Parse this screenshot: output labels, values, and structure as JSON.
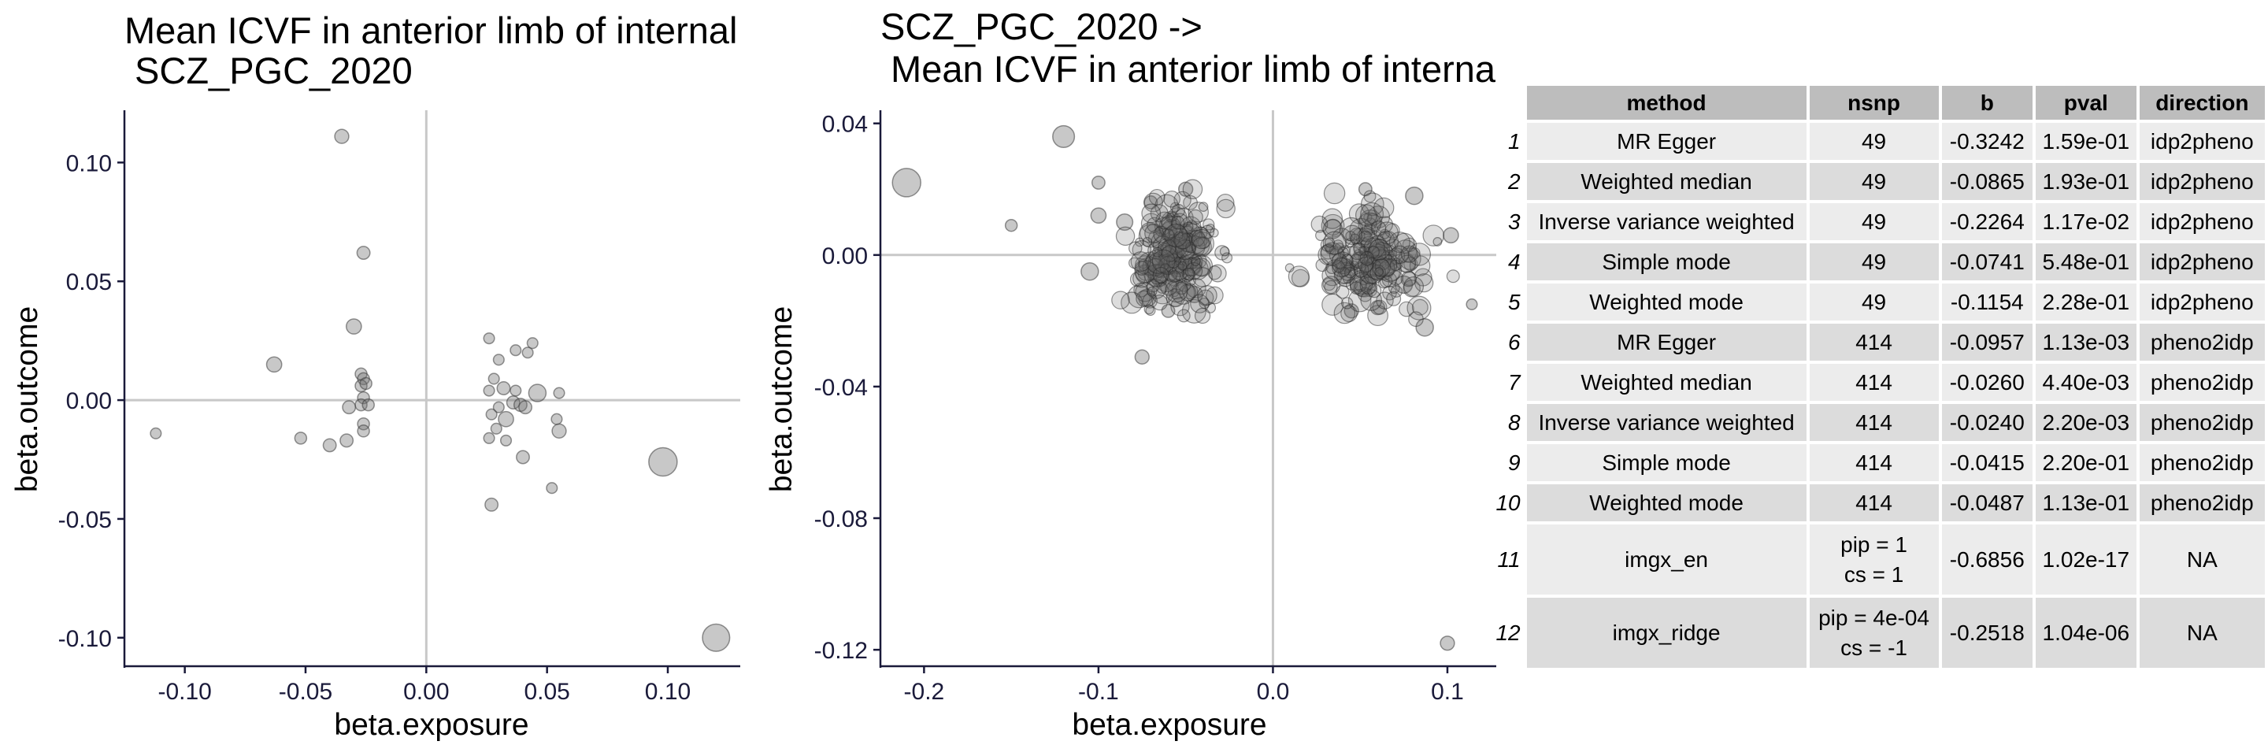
{
  "chart_data": [
    {
      "type": "scatter",
      "title_line1": "Mean ICVF in anterior limb of internal",
      "title_line2": " SCZ_PGC_2020",
      "xlabel": "beta.exposure",
      "ylabel": "beta.outcome",
      "xlim": [
        -0.125,
        0.13
      ],
      "ylim": [
        -0.112,
        0.122
      ],
      "xticks": [
        -0.1,
        -0.05,
        0.0,
        0.05,
        0.1
      ],
      "xtick_labels": [
        "-0.10",
        "-0.05",
        "0.00",
        "0.05",
        "0.10"
      ],
      "yticks": [
        -0.1,
        -0.05,
        0.0,
        0.05,
        0.1
      ],
      "ytick_labels": [
        "-0.10",
        "-0.05",
        "0.00",
        "0.05",
        "0.10"
      ],
      "points": [
        {
          "x": -0.035,
          "y": 0.111,
          "s": 0.35
        },
        {
          "x": -0.026,
          "y": 0.062,
          "s": 0.3
        },
        {
          "x": -0.063,
          "y": 0.015,
          "s": 0.4
        },
        {
          "x": -0.03,
          "y": 0.031,
          "s": 0.4
        },
        {
          "x": -0.112,
          "y": -0.014,
          "s": 0.2
        },
        {
          "x": -0.052,
          "y": -0.016,
          "s": 0.25
        },
        {
          "x": -0.04,
          "y": -0.019,
          "s": 0.3
        },
        {
          "x": -0.033,
          "y": -0.017,
          "s": 0.3
        },
        {
          "x": -0.027,
          "y": 0.011,
          "s": 0.25
        },
        {
          "x": -0.026,
          "y": 0.009,
          "s": 0.25
        },
        {
          "x": -0.027,
          "y": 0.006,
          "s": 0.25
        },
        {
          "x": -0.025,
          "y": 0.007,
          "s": 0.25
        },
        {
          "x": -0.026,
          "y": 0.001,
          "s": 0.25
        },
        {
          "x": -0.027,
          "y": -0.002,
          "s": 0.25
        },
        {
          "x": -0.024,
          "y": -0.002,
          "s": 0.25
        },
        {
          "x": -0.032,
          "y": -0.003,
          "s": 0.3
        },
        {
          "x": -0.026,
          "y": -0.01,
          "s": 0.25
        },
        {
          "x": -0.026,
          "y": -0.013,
          "s": 0.25
        },
        {
          "x": 0.026,
          "y": 0.026,
          "s": 0.2
        },
        {
          "x": 0.044,
          "y": 0.024,
          "s": 0.2
        },
        {
          "x": 0.042,
          "y": 0.02,
          "s": 0.2
        },
        {
          "x": 0.037,
          "y": 0.021,
          "s": 0.2
        },
        {
          "x": 0.03,
          "y": 0.017,
          "s": 0.2
        },
        {
          "x": 0.028,
          "y": 0.009,
          "s": 0.2
        },
        {
          "x": 0.026,
          "y": 0.004,
          "s": 0.2
        },
        {
          "x": 0.032,
          "y": 0.005,
          "s": 0.3
        },
        {
          "x": 0.037,
          "y": 0.004,
          "s": 0.2
        },
        {
          "x": 0.046,
          "y": 0.003,
          "s": 0.5
        },
        {
          "x": 0.055,
          "y": 0.003,
          "s": 0.2
        },
        {
          "x": 0.036,
          "y": -0.001,
          "s": 0.3
        },
        {
          "x": 0.039,
          "y": -0.002,
          "s": 0.3
        },
        {
          "x": 0.041,
          "y": -0.003,
          "s": 0.3
        },
        {
          "x": 0.03,
          "y": -0.003,
          "s": 0.2
        },
        {
          "x": 0.027,
          "y": -0.006,
          "s": 0.2
        },
        {
          "x": 0.033,
          "y": -0.008,
          "s": 0.4
        },
        {
          "x": 0.029,
          "y": -0.012,
          "s": 0.2
        },
        {
          "x": 0.054,
          "y": -0.008,
          "s": 0.2
        },
        {
          "x": 0.055,
          "y": -0.013,
          "s": 0.35
        },
        {
          "x": 0.026,
          "y": -0.016,
          "s": 0.2
        },
        {
          "x": 0.033,
          "y": -0.017,
          "s": 0.2
        },
        {
          "x": 0.04,
          "y": -0.024,
          "s": 0.3
        },
        {
          "x": 0.052,
          "y": -0.037,
          "s": 0.2
        },
        {
          "x": 0.027,
          "y": -0.044,
          "s": 0.3
        },
        {
          "x": 0.098,
          "y": -0.026,
          "s": 1.0
        },
        {
          "x": 0.12,
          "y": -0.1,
          "s": 0.95
        }
      ]
    },
    {
      "type": "scatter",
      "title_line1": "SCZ_PGC_2020 ->",
      "title_line2": " Mean ICVF in anterior limb of internal capsule on FA skeleton (left)",
      "xlabel": "beta.exposure",
      "ylabel": "beta.outcome",
      "xlim": [
        -0.225,
        0.128
      ],
      "ylim": [
        -0.125,
        0.044
      ],
      "xticks": [
        -0.2,
        -0.1,
        0.0,
        0.1
      ],
      "xtick_labels": [
        "-0.2",
        "-0.1",
        "0.0",
        "0.1"
      ],
      "yticks": [
        -0.12,
        -0.08,
        -0.04,
        0.0,
        0.04
      ],
      "ytick_labels": [
        "-0.12",
        "-0.08",
        "-0.04",
        "0.00",
        "0.04"
      ],
      "points": [
        {
          "x": -0.21,
          "y": 0.022,
          "s": 1.0
        },
        {
          "x": -0.12,
          "y": 0.036,
          "s": 0.7
        },
        {
          "x": -0.15,
          "y": 0.009,
          "s": 0.25
        },
        {
          "x": -0.1,
          "y": 0.022,
          "s": 0.3
        },
        {
          "x": -0.075,
          "y": -0.031,
          "s": 0.35
        },
        {
          "x": -0.1,
          "y": 0.012,
          "s": 0.4
        },
        {
          "x": -0.105,
          "y": -0.005,
          "s": 0.5
        },
        {
          "x": -0.072,
          "y": -0.013,
          "s": 0.5
        },
        {
          "x": -0.05,
          "y": 0.02,
          "s": 0.35
        },
        {
          "x": -0.07,
          "y": 0.016,
          "s": 0.3
        },
        {
          "x": -0.085,
          "y": 0.01,
          "s": 0.45
        },
        {
          "x": -0.06,
          "y": -0.017,
          "s": 0.3
        },
        {
          "x": -0.045,
          "y": -0.012,
          "s": 0.45
        },
        {
          "x": 0.1,
          "y": -0.118,
          "s": 0.35
        },
        {
          "x": 0.114,
          "y": -0.015,
          "s": 0.2
        },
        {
          "x": 0.102,
          "y": 0.006,
          "s": 0.4
        },
        {
          "x": 0.081,
          "y": 0.018,
          "s": 0.5
        },
        {
          "x": 0.087,
          "y": -0.022,
          "s": 0.5
        },
        {
          "x": 0.053,
          "y": 0.02,
          "s": 0.3
        },
        {
          "x": 0.075,
          "y": -0.009,
          "s": 0.5
        },
        {
          "x": 0.06,
          "y": -0.016,
          "s": 0.35
        },
        {
          "x": 0.045,
          "y": -0.017,
          "s": 0.35
        }
      ],
      "clusters": [
        {
          "cx": -0.055,
          "cy": 0.0,
          "sx": 0.012,
          "sy": 0.008,
          "n": 220,
          "seed": 11
        },
        {
          "cx": 0.055,
          "cy": -0.002,
          "sx": 0.015,
          "sy": 0.007,
          "n": 200,
          "seed": 29
        }
      ]
    }
  ],
  "table": {
    "headers": [
      "method",
      "nsnp",
      "b",
      "pval",
      "direction"
    ],
    "rows": [
      {
        "id": "1",
        "method": "MR Egger",
        "nsnp": "49",
        "b": "-0.3242",
        "pval": "1.59e-01",
        "direction": "idp2pheno"
      },
      {
        "id": "2",
        "method": "Weighted median",
        "nsnp": "49",
        "b": "-0.0865",
        "pval": "1.93e-01",
        "direction": "idp2pheno"
      },
      {
        "id": "3",
        "method": "Inverse variance weighted",
        "nsnp": "49",
        "b": "-0.2264",
        "pval": "1.17e-02",
        "direction": "idp2pheno"
      },
      {
        "id": "4",
        "method": "Simple mode",
        "nsnp": "49",
        "b": "-0.0741",
        "pval": "5.48e-01",
        "direction": "idp2pheno"
      },
      {
        "id": "5",
        "method": "Weighted mode",
        "nsnp": "49",
        "b": "-0.1154",
        "pval": "2.28e-01",
        "direction": "idp2pheno"
      },
      {
        "id": "6",
        "method": "MR Egger",
        "nsnp": "414",
        "b": "-0.0957",
        "pval": "1.13e-03",
        "direction": "pheno2idp"
      },
      {
        "id": "7",
        "method": "Weighted median",
        "nsnp": "414",
        "b": "-0.0260",
        "pval": "4.40e-03",
        "direction": "pheno2idp"
      },
      {
        "id": "8",
        "method": "Inverse variance weighted",
        "nsnp": "414",
        "b": "-0.0240",
        "pval": "2.20e-03",
        "direction": "pheno2idp"
      },
      {
        "id": "9",
        "method": "Simple mode",
        "nsnp": "414",
        "b": "-0.0415",
        "pval": "2.20e-01",
        "direction": "pheno2idp"
      },
      {
        "id": "10",
        "method": "Weighted mode",
        "nsnp": "414",
        "b": "-0.0487",
        "pval": "1.13e-01",
        "direction": "pheno2idp"
      },
      {
        "id": "11",
        "method": "imgx_en",
        "nsnp_line1": "pip = 1",
        "nsnp_line2": "cs = 1",
        "b": "-0.6856",
        "pval": "1.02e-17",
        "direction": "NA"
      },
      {
        "id": "12",
        "method": "imgx_ridge",
        "nsnp_line1": "pip = 4e-04",
        "nsnp_line2": "cs = -1",
        "b": "-0.2518",
        "pval": "1.04e-06",
        "direction": "NA"
      }
    ]
  }
}
